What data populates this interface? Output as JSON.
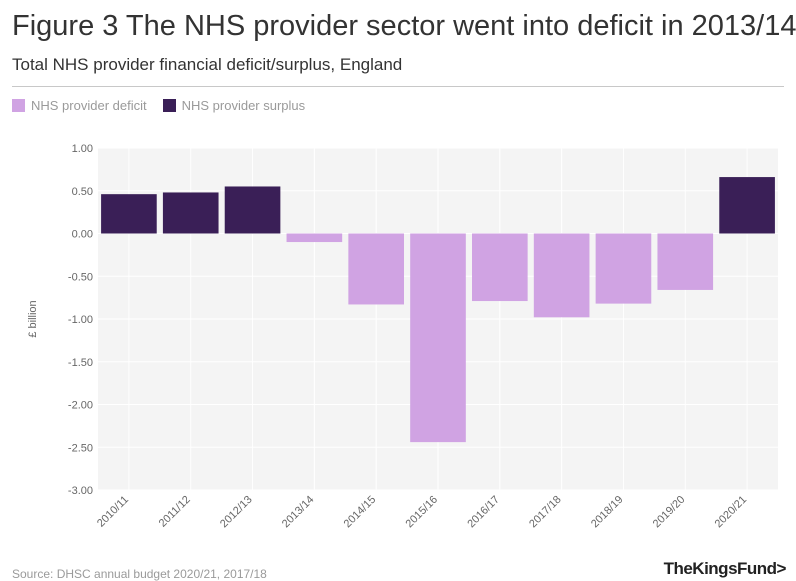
{
  "header": {
    "title": "Figure 3 The NHS provider sector went into deficit in 2013/14",
    "subtitle": "Total NHS provider financial deficit/surplus, England"
  },
  "legend": {
    "deficit_label": "NHS provider deficit",
    "surplus_label": "NHS provider surplus"
  },
  "colors": {
    "deficit": "#d0a3e3",
    "surplus": "#3a1f57",
    "plot_bg": "#f4f4f4",
    "grid": "#ffffff",
    "axis_text": "#666666"
  },
  "footer": {
    "source": "Source: DHSC annual budget 2020/21, 2017/18",
    "logo": "TheKingsFund>"
  },
  "chart_data": {
    "type": "bar",
    "title": "Figure 3 The NHS provider sector went into deficit in 2013/14",
    "subtitle": "Total NHS provider financial deficit/surplus, England",
    "xlabel": "",
    "ylabel": "£ billion",
    "ylim": [
      -3.0,
      1.0
    ],
    "yticks": [
      "1.00",
      "0.50",
      "0.00",
      "-0.50",
      "-1.00",
      "-1.50",
      "-2.00",
      "-2.50",
      "-3.00"
    ],
    "categories": [
      "2010/11",
      "2011/12",
      "2012/13",
      "2013/14",
      "2014/15",
      "2015/16",
      "2016/17",
      "2017/18",
      "2018/19",
      "2019/20",
      "2020/21"
    ],
    "values": [
      0.46,
      0.48,
      0.55,
      -0.1,
      -0.83,
      -2.44,
      -0.79,
      -0.98,
      -0.82,
      -0.66,
      0.66
    ],
    "series_by_sign": {
      "negative": "NHS provider deficit",
      "positive": "NHS provider surplus"
    }
  }
}
